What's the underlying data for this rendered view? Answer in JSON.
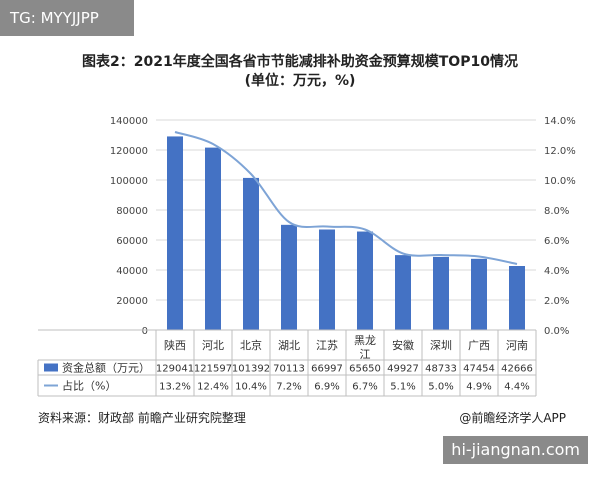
{
  "tag": "TG: MYYJJPP",
  "title": "图表2：2021年度全国各省市节能减排补助资金预算规模TOP10情况",
  "subtitle": "(单位：万元，%)",
  "source": "资料来源：财政部 前瞻产业研究院整理",
  "credit": "@前瞻经济学人APP",
  "watermark": "hi-jiangnan.com",
  "colors": {
    "bar": "#4472c4",
    "line": "#7ea4d6",
    "grid": "#d9d9d9",
    "table_border": "#bfbfbf"
  },
  "chart_data": {
    "type": "bar",
    "categories": [
      "陕西",
      "河北",
      "北京",
      "湖北",
      "江苏",
      "黑龙\n江",
      "安徽",
      "深圳",
      "广西",
      "河南"
    ],
    "series": [
      {
        "name": "资金总额（万元）",
        "type": "bar",
        "axis": "left",
        "values": [
          129041,
          121597,
          101392,
          70113,
          66997,
          65650,
          49927,
          48733,
          47454,
          42666
        ]
      },
      {
        "name": "占比（%）",
        "type": "line",
        "axis": "right",
        "values": [
          13.2,
          12.4,
          10.4,
          7.2,
          6.9,
          6.7,
          5.1,
          5.0,
          4.9,
          4.4
        ]
      }
    ],
    "table_rows": [
      [
        "129041",
        "121597",
        "101392",
        "70113",
        "66997",
        "65650",
        "49927",
        "48733",
        "47454",
        "42666"
      ],
      [
        "13.2%",
        "12.4%",
        "10.4%",
        "7.2%",
        "6.9%",
        "6.7%",
        "5.1%",
        "5.0%",
        "4.9%",
        "4.4%"
      ]
    ],
    "y_left": {
      "min": 0,
      "max": 140000,
      "ticks": [
        "0",
        "20000",
        "40000",
        "60000",
        "80000",
        "100000",
        "120000",
        "140000"
      ]
    },
    "y_right": {
      "min": 0,
      "max": 14,
      "ticks": [
        "0.0%",
        "2.0%",
        "4.0%",
        "6.0%",
        "8.0%",
        "10.0%",
        "12.0%",
        "14.0%"
      ]
    },
    "grid": true,
    "legend": "table-left"
  }
}
